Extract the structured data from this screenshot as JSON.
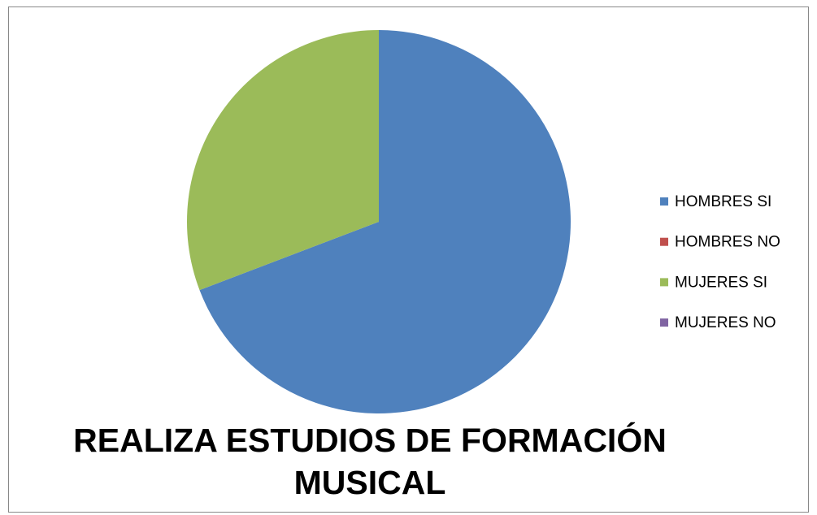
{
  "chart_data": {
    "type": "pie",
    "title": "REALIZA ESTUDIOS DE FORMACIÓN MUSICAL",
    "categories": [
      "HOMBRES  SI",
      "HOMBRES  NO",
      "MUJERES SI",
      "MUJERES NO"
    ],
    "values": [
      69.2,
      0,
      30.8,
      0
    ],
    "colors": [
      "#4f81bd",
      "#c0504d",
      "#9bbb59",
      "#8064a2"
    ],
    "legend": "right"
  }
}
